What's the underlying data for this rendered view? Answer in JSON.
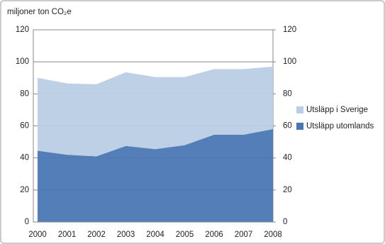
{
  "chart_data": {
    "type": "stacked-area",
    "y_axis_label": "miljoner ton CO₂e",
    "categories": [
      "2000",
      "2001",
      "2002",
      "2003",
      "2004",
      "2005",
      "2006",
      "2007",
      "2008"
    ],
    "series": [
      {
        "name": "Utsläpp utomlands",
        "color": "#4a77b4",
        "values": [
          44.5,
          42,
          41,
          47.5,
          45.5,
          48,
          54.5,
          54.5,
          58
        ]
      },
      {
        "name": "Utsläpp i Sverige",
        "color": "#b9cde5",
        "values": [
          45.5,
          44.5,
          45,
          46,
          45,
          42.5,
          41,
          41,
          39
        ]
      }
    ],
    "ylim": [
      0,
      120
    ],
    "yticks": [
      0,
      20,
      40,
      60,
      80,
      100,
      120
    ],
    "y2lim": [
      0,
      120
    ],
    "y2ticks": [
      0,
      20,
      40,
      60,
      80,
      100,
      120
    ],
    "grid": true,
    "legend": "right"
  }
}
